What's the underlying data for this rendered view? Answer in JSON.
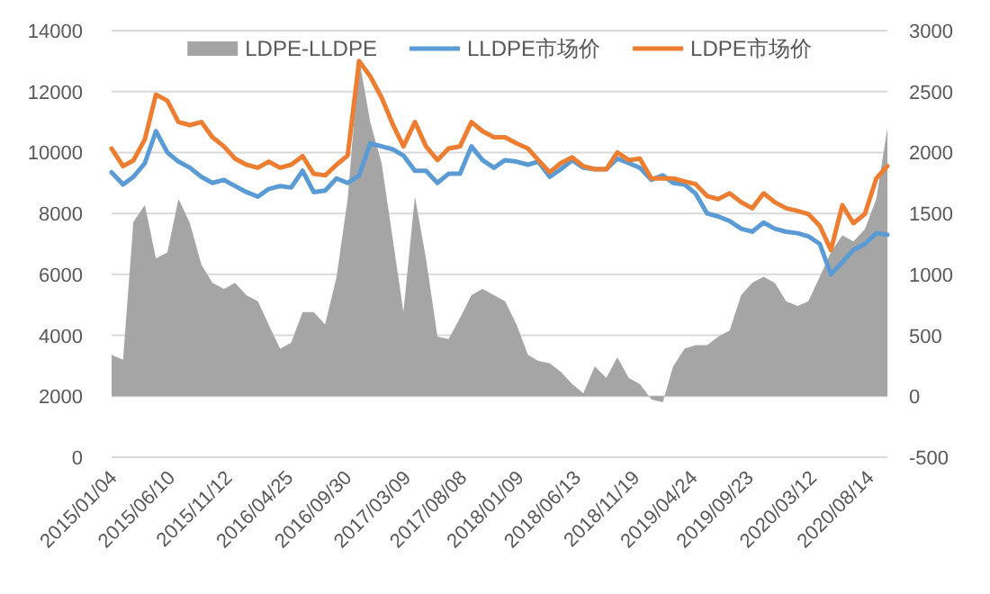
{
  "chart_data": {
    "type": "line",
    "x": [
      "2015-01",
      "2015-02",
      "2015-03",
      "2015-04",
      "2015-05",
      "2015-06",
      "2015-07",
      "2015-08",
      "2015-09",
      "2015-10",
      "2015-11",
      "2015-12",
      "2016-01",
      "2016-02",
      "2016-03",
      "2016-04",
      "2016-05",
      "2016-06",
      "2016-07",
      "2016-08",
      "2016-09",
      "2016-10",
      "2016-11",
      "2016-12",
      "2017-01",
      "2017-02",
      "2017-03",
      "2017-04",
      "2017-05",
      "2017-06",
      "2017-07",
      "2017-08",
      "2017-09",
      "2017-10",
      "2017-11",
      "2017-12",
      "2018-01",
      "2018-02",
      "2018-03",
      "2018-04",
      "2018-05",
      "2018-06",
      "2018-07",
      "2018-08",
      "2018-09",
      "2018-10",
      "2018-11",
      "2018-12",
      "2019-01",
      "2019-02",
      "2019-03",
      "2019-04",
      "2019-05",
      "2019-06",
      "2019-07",
      "2019-08",
      "2019-09",
      "2019-10",
      "2019-11",
      "2019-12",
      "2020-01",
      "2020-02",
      "2020-03",
      "2020-04",
      "2020-05",
      "2020-06",
      "2020-07",
      "2020-08",
      "2020-09",
      "2020-10"
    ],
    "series": [
      {
        "name": "LDPE-LLDPE",
        "type": "area",
        "axis": "y2",
        "color": "#a5a5a5",
        "values": [
          340,
          300,
          1430,
          1570,
          1130,
          1180,
          1620,
          1420,
          1080,
          930,
          880,
          930,
          830,
          780,
          590,
          390,
          440,
          690,
          690,
          590,
          980,
          1620,
          2770,
          2250,
          1910,
          1270,
          690,
          1640,
          1130,
          490,
          470,
          640,
          830,
          880,
          830,
          780,
          590,
          340,
          290,
          270,
          200,
          100,
          25,
          245,
          150,
          320,
          150,
          100,
          -25,
          -50,
          245,
          390,
          420,
          420,
          490,
          540,
          830,
          930,
          980,
          930,
          780,
          740,
          780,
          980,
          1180,
          1320,
          1270,
          1370,
          1620,
          2200
        ]
      },
      {
        "name": "LLDPE市场价",
        "color": "#5b9bd5",
        "values": [
          9350,
          8950,
          9200,
          9650,
          10700,
          10000,
          9700,
          9500,
          9200,
          9000,
          9100,
          8900,
          8700,
          8550,
          8800,
          8900,
          8850,
          9400,
          8700,
          8750,
          9150,
          9000,
          9250,
          10300,
          10200,
          10100,
          9900,
          9400,
          9400,
          9000,
          9300,
          9300,
          10200,
          9750,
          9500,
          9750,
          9700,
          9600,
          9700,
          9200,
          9450,
          9750,
          9500,
          9450,
          9450,
          9800,
          9650,
          9500,
          9100,
          9250,
          9000,
          8950,
          8650,
          8000,
          7900,
          7750,
          7500,
          7400,
          7700,
          7500,
          7400,
          7350,
          7250,
          7000,
          6000,
          6400,
          6800,
          7000,
          7350,
          7300
        ]
      },
      {
        "name": "LDPE市场价",
        "color": "#ed7d31",
        "values": [
          10130,
          9550,
          9740,
          10430,
          11900,
          11700,
          11000,
          10900,
          11000,
          10500,
          10200,
          9800,
          9600,
          9500,
          9700,
          9500,
          9600,
          9880,
          9300,
          9250,
          9600,
          9900,
          13000,
          12500,
          11800,
          10900,
          10200,
          11000,
          10200,
          9750,
          10130,
          10200,
          11000,
          10700,
          10500,
          10500,
          10300,
          10130,
          9750,
          9350,
          9650,
          9840,
          9550,
          9450,
          9450,
          10000,
          9750,
          9800,
          9150,
          9150,
          9150,
          9050,
          8960,
          8570,
          8470,
          8660,
          8370,
          8170,
          8660,
          8370,
          8170,
          8080,
          7980,
          7590,
          6800,
          8270,
          7680,
          7980,
          9150,
          9550
        ]
      }
    ],
    "xlim": [
      "2015-01",
      "2020-10"
    ],
    "xticks": [
      {
        "value": "2015-01-04",
        "label": "2015/01/04"
      },
      {
        "value": "2015-06-10",
        "label": "2015/06/10"
      },
      {
        "value": "2015-11-12",
        "label": "2015/11/12"
      },
      {
        "value": "2016-04-25",
        "label": "2016/04/25"
      },
      {
        "value": "2016-09-30",
        "label": "2016/09/30"
      },
      {
        "value": "2017-03-09",
        "label": "2017/03/09"
      },
      {
        "value": "2017-08-08",
        "label": "2017/08/08"
      },
      {
        "value": "2018-01-09",
        "label": "2018/01/09"
      },
      {
        "value": "2018-06-13",
        "label": "2018/06/13"
      },
      {
        "value": "2018-11-19",
        "label": "2018/11/19"
      },
      {
        "value": "2019-04-24",
        "label": "2019/04/24"
      },
      {
        "value": "2019-09-23",
        "label": "2019/09/23"
      },
      {
        "value": "2020-03-12",
        "label": "2020/03/12"
      },
      {
        "value": "2020-08-14",
        "label": "2020/08/14"
      }
    ],
    "ylim": [
      0,
      14000
    ],
    "yticks": [
      0,
      2000,
      4000,
      6000,
      8000,
      10000,
      12000,
      14000
    ],
    "y2lim": [
      -500,
      3000
    ],
    "y2ticks": [
      -500,
      0,
      500,
      1000,
      1500,
      2000,
      2500,
      3000
    ],
    "grid": "y",
    "legend": "top"
  }
}
